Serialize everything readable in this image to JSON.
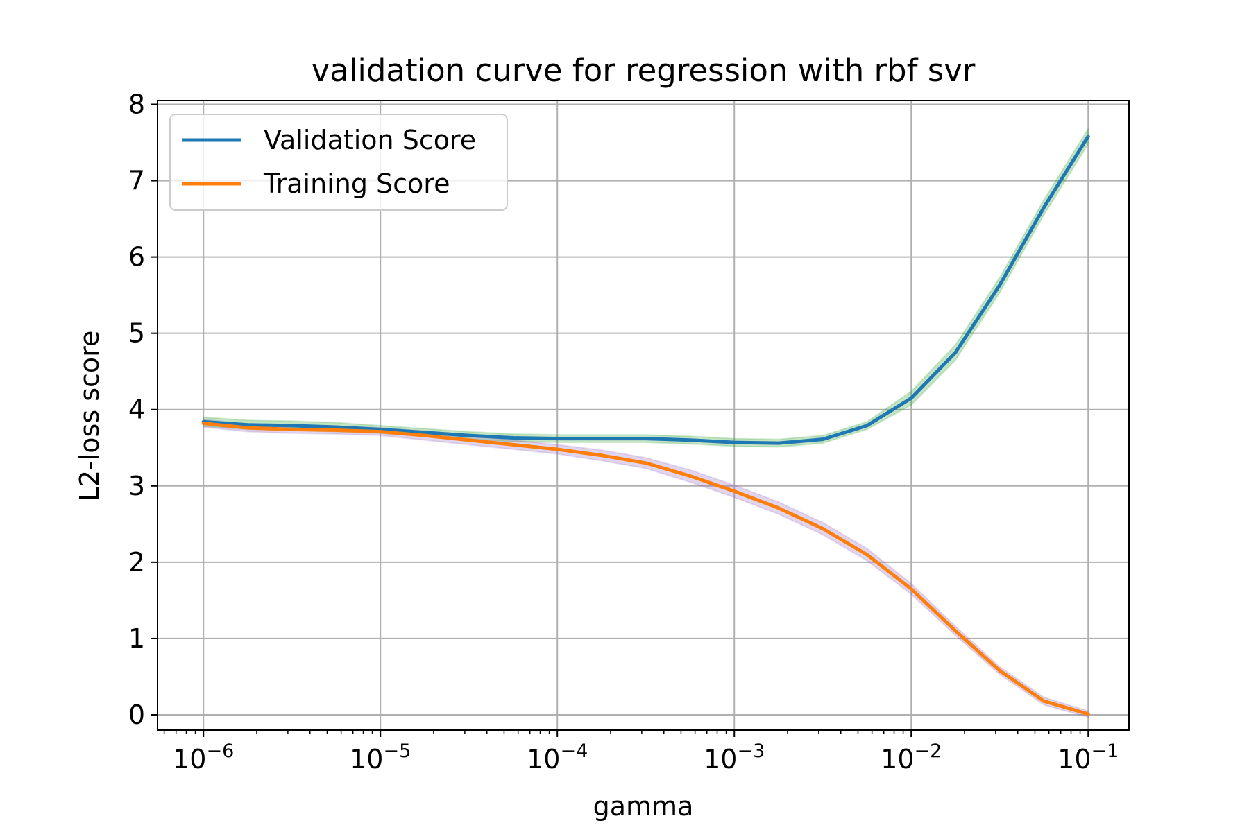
{
  "chart_data": {
    "type": "line",
    "title": "validation curve for regression with rbf svr",
    "xlabel": "gamma",
    "ylabel": "L2-loss score",
    "x_scale": "log",
    "xlim": [
      5.5e-07,
      0.17
    ],
    "ylim": [
      -0.2,
      8.05
    ],
    "grid": true,
    "legend_position": "upper-left",
    "x_ticks": [
      {
        "value": 1e-06,
        "base": "10",
        "exp": "−6"
      },
      {
        "value": 1e-05,
        "base": "10",
        "exp": "−5"
      },
      {
        "value": 0.0001,
        "base": "10",
        "exp": "−4"
      },
      {
        "value": 0.001,
        "base": "10",
        "exp": "−3"
      },
      {
        "value": 0.01,
        "base": "10",
        "exp": "−2"
      },
      {
        "value": 0.1,
        "base": "10",
        "exp": "−1"
      }
    ],
    "y_ticks": [
      0,
      1,
      2,
      3,
      4,
      5,
      6,
      7,
      8
    ],
    "x": [
      1e-06,
      1.78e-06,
      3.16e-06,
      5.62e-06,
      1e-05,
      1.78e-05,
      3.16e-05,
      5.62e-05,
      0.0001,
      0.000178,
      0.000316,
      0.000562,
      0.001,
      0.00178,
      0.00316,
      0.00562,
      0.01,
      0.0178,
      0.0316,
      0.0562,
      0.1
    ],
    "series": [
      {
        "name": "Validation Score",
        "color": "#1f77b4",
        "band_color": "#2ca02c",
        "values": [
          3.84,
          3.8,
          3.79,
          3.77,
          3.74,
          3.7,
          3.66,
          3.63,
          3.62,
          3.62,
          3.62,
          3.6,
          3.57,
          3.56,
          3.61,
          3.79,
          4.15,
          4.75,
          5.63,
          6.65,
          7.58
        ],
        "std": [
          0.06,
          0.06,
          0.06,
          0.06,
          0.05,
          0.05,
          0.05,
          0.05,
          0.05,
          0.05,
          0.05,
          0.05,
          0.05,
          0.05,
          0.05,
          0.05,
          0.09,
          0.1,
          0.1,
          0.1,
          0.1
        ]
      },
      {
        "name": "Training Score",
        "color": "#ff7f0e",
        "band_color": "#9467bd",
        "values": [
          3.82,
          3.76,
          3.74,
          3.73,
          3.71,
          3.66,
          3.6,
          3.54,
          3.48,
          3.4,
          3.3,
          3.13,
          2.93,
          2.71,
          2.44,
          2.1,
          1.65,
          1.1,
          0.58,
          0.18,
          0.01
        ],
        "std": [
          0.05,
          0.05,
          0.05,
          0.05,
          0.05,
          0.06,
          0.06,
          0.06,
          0.06,
          0.07,
          0.07,
          0.08,
          0.08,
          0.08,
          0.08,
          0.08,
          0.07,
          0.06,
          0.05,
          0.05,
          0.04
        ]
      }
    ]
  }
}
